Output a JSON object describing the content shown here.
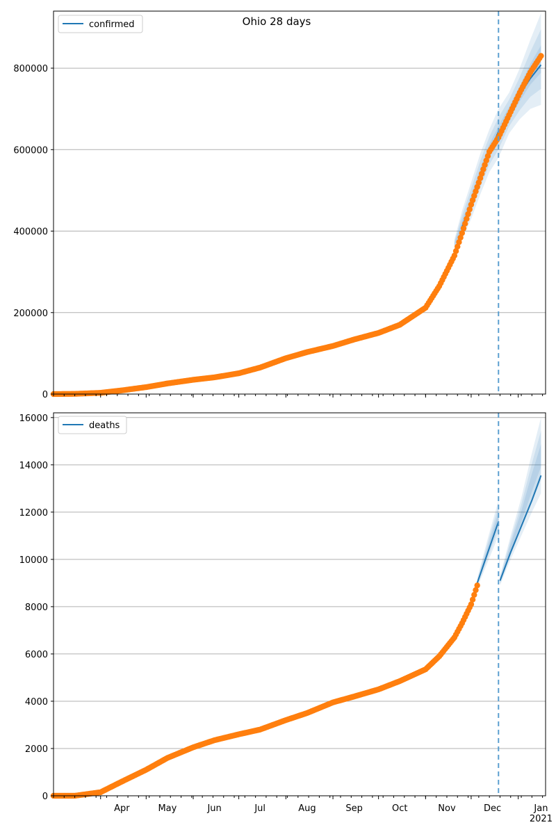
{
  "chart_data": [
    {
      "type": "line",
      "title": "Ohio 28 days",
      "xlabel": "",
      "ylabel": "",
      "ylim": [
        0,
        940000
      ],
      "yticks": [
        0,
        200000,
        400000,
        600000,
        800000
      ],
      "ytick_labels": [
        "0",
        "200000",
        "400000",
        "600000",
        "800000"
      ],
      "grid": "horizontal",
      "legend": {
        "placement": "top-left",
        "entries": [
          "confirmed"
        ]
      },
      "forecast_start": "2020-12-19",
      "series": [
        {
          "name": "confirmed",
          "kind": "fit",
          "x": [
            "2020-11-25",
            "2020-12-01",
            "2020-12-07",
            "2020-12-13",
            "2020-12-19"
          ],
          "y": [
            410000,
            470000,
            530000,
            590000,
            645000
          ]
        },
        {
          "kind": "forecast",
          "x": [
            "2020-12-19",
            "2020-12-26",
            "2021-01-02",
            "2021-01-09",
            "2021-01-16"
          ],
          "y": [
            630000,
            690000,
            735000,
            775000,
            808000
          ]
        },
        {
          "kind": "observed",
          "x": [
            "2020-03-01",
            "2020-03-15",
            "2020-04-01",
            "2020-04-15",
            "2020-05-01",
            "2020-05-15",
            "2020-06-01",
            "2020-06-15",
            "2020-07-01",
            "2020-07-15",
            "2020-08-01",
            "2020-08-15",
            "2020-09-01",
            "2020-09-15",
            "2020-10-01",
            "2020-10-15",
            "2020-11-01",
            "2020-11-10",
            "2020-11-20",
            "2020-11-25",
            "2020-12-01",
            "2020-12-07",
            "2020-12-13",
            "2020-12-19",
            "2020-12-26",
            "2021-01-02",
            "2021-01-09",
            "2021-01-16"
          ],
          "y": [
            0,
            500,
            3000,
            9000,
            17000,
            26000,
            35000,
            41000,
            51000,
            65000,
            88000,
            103000,
            118000,
            134000,
            150000,
            170000,
            212000,
            265000,
            340000,
            395000,
            465000,
            530000,
            595000,
            630000,
            685000,
            740000,
            790000,
            830000
          ]
        }
      ],
      "band": {
        "x": [
          "2020-11-20",
          "2020-11-25",
          "2020-12-01",
          "2020-12-07",
          "2020-12-13",
          "2020-12-19",
          "2020-12-26",
          "2021-01-02",
          "2021-01-09",
          "2021-01-16"
        ],
        "lower": [
          355000,
          380000,
          430000,
          490000,
          545000,
          580000,
          640000,
          675000,
          700000,
          710000
        ],
        "upper": [
          380000,
          450000,
          520000,
          590000,
          650000,
          700000,
          740000,
          800000,
          870000,
          935000
        ]
      }
    },
    {
      "type": "line",
      "title": "",
      "xlabel": "",
      "ylabel": "",
      "ylim": [
        0,
        16200
      ],
      "yticks": [
        0,
        2000,
        4000,
        6000,
        8000,
        10000,
        12000,
        14000,
        16000
      ],
      "ytick_labels": [
        "0",
        "2000",
        "4000",
        "6000",
        "8000",
        "10000",
        "12000",
        "14000",
        "16000"
      ],
      "xtick_labels": [
        "Apr",
        "May",
        "Jun",
        "Jul",
        "Aug",
        "Sep",
        "Oct",
        "Nov",
        "Dec",
        "Jan\n2021"
      ],
      "grid": "horizontal",
      "legend": {
        "placement": "top-left",
        "entries": [
          "deaths"
        ]
      },
      "forecast_start": "2020-12-19",
      "series": [
        {
          "name": "deaths",
          "kind": "fit",
          "x": [
            "2020-12-05",
            "2020-12-12",
            "2020-12-19"
          ],
          "y": [
            9000,
            10300,
            11600
          ]
        },
        {
          "kind": "forecast",
          "x": [
            "2020-12-20",
            "2020-12-27",
            "2021-01-03",
            "2021-01-10",
            "2021-01-16"
          ],
          "y": [
            9100,
            10300,
            11400,
            12500,
            13550
          ]
        },
        {
          "kind": "observed",
          "x": [
            "2020-03-01",
            "2020-03-15",
            "2020-04-01",
            "2020-04-15",
            "2020-05-01",
            "2020-05-15",
            "2020-06-01",
            "2020-06-15",
            "2020-07-01",
            "2020-07-15",
            "2020-08-01",
            "2020-08-15",
            "2020-09-01",
            "2020-09-15",
            "2020-10-01",
            "2020-10-15",
            "2020-11-01",
            "2020-11-10",
            "2020-11-20",
            "2020-11-25",
            "2020-12-01",
            "2020-12-05"
          ],
          "y": [
            0,
            0,
            150,
            600,
            1100,
            1600,
            2050,
            2350,
            2600,
            2800,
            3200,
            3500,
            3950,
            4200,
            4500,
            4850,
            5350,
            5900,
            6700,
            7300,
            8100,
            8900
          ]
        }
      ],
      "band": {
        "x": [
          "2020-12-05",
          "2020-12-12",
          "2020-12-19",
          "2020-12-20",
          "2020-12-27",
          "2021-01-03",
          "2021-01-10",
          "2021-01-16"
        ],
        "lower": [
          8800,
          9900,
          11000,
          8900,
          10000,
          11000,
          12000,
          12800
        ],
        "upper": [
          9200,
          10900,
          12500,
          9300,
          11000,
          12600,
          14500,
          16000
        ]
      }
    }
  ]
}
